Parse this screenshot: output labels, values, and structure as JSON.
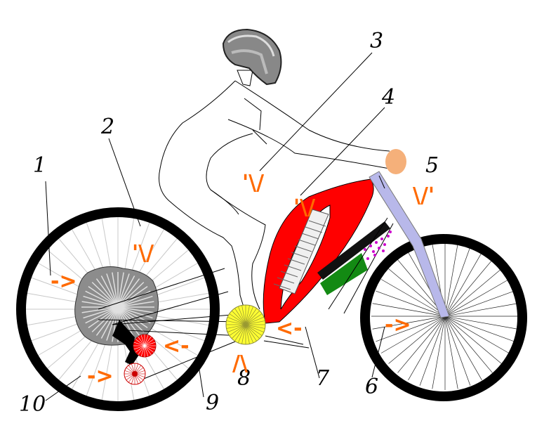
{
  "labels": [
    {
      "id": "1",
      "text": "1"
    },
    {
      "id": "2",
      "text": "2"
    },
    {
      "id": "3",
      "text": "3"
    },
    {
      "id": "4",
      "text": "4"
    },
    {
      "id": "5",
      "text": "5"
    },
    {
      "id": "6",
      "text": "6"
    },
    {
      "id": "7",
      "text": "7"
    },
    {
      "id": "8",
      "text": "8"
    },
    {
      "id": "9",
      "text": "9"
    },
    {
      "id": "10",
      "text": "10"
    }
  ],
  "arrows": [
    {
      "text": "->"
    },
    {
      "text": "'\\/"
    },
    {
      "text": "'\\/"
    },
    {
      "text": "'\\/"
    },
    {
      "text": "\\/'"
    },
    {
      "text": "->"
    },
    {
      "text": "<-"
    },
    {
      "text": "/\\"
    },
    {
      "text": "<-"
    },
    {
      "text": "->"
    }
  ],
  "colors": {
    "frame": "#ff0000",
    "fork": "#b8b8ea",
    "motor": "#138a13",
    "chainring": "#ffff33",
    "cog": "#ff0000",
    "arrow": "#ff6a00",
    "skin": "#f5b07a",
    "tire": "#000000"
  }
}
